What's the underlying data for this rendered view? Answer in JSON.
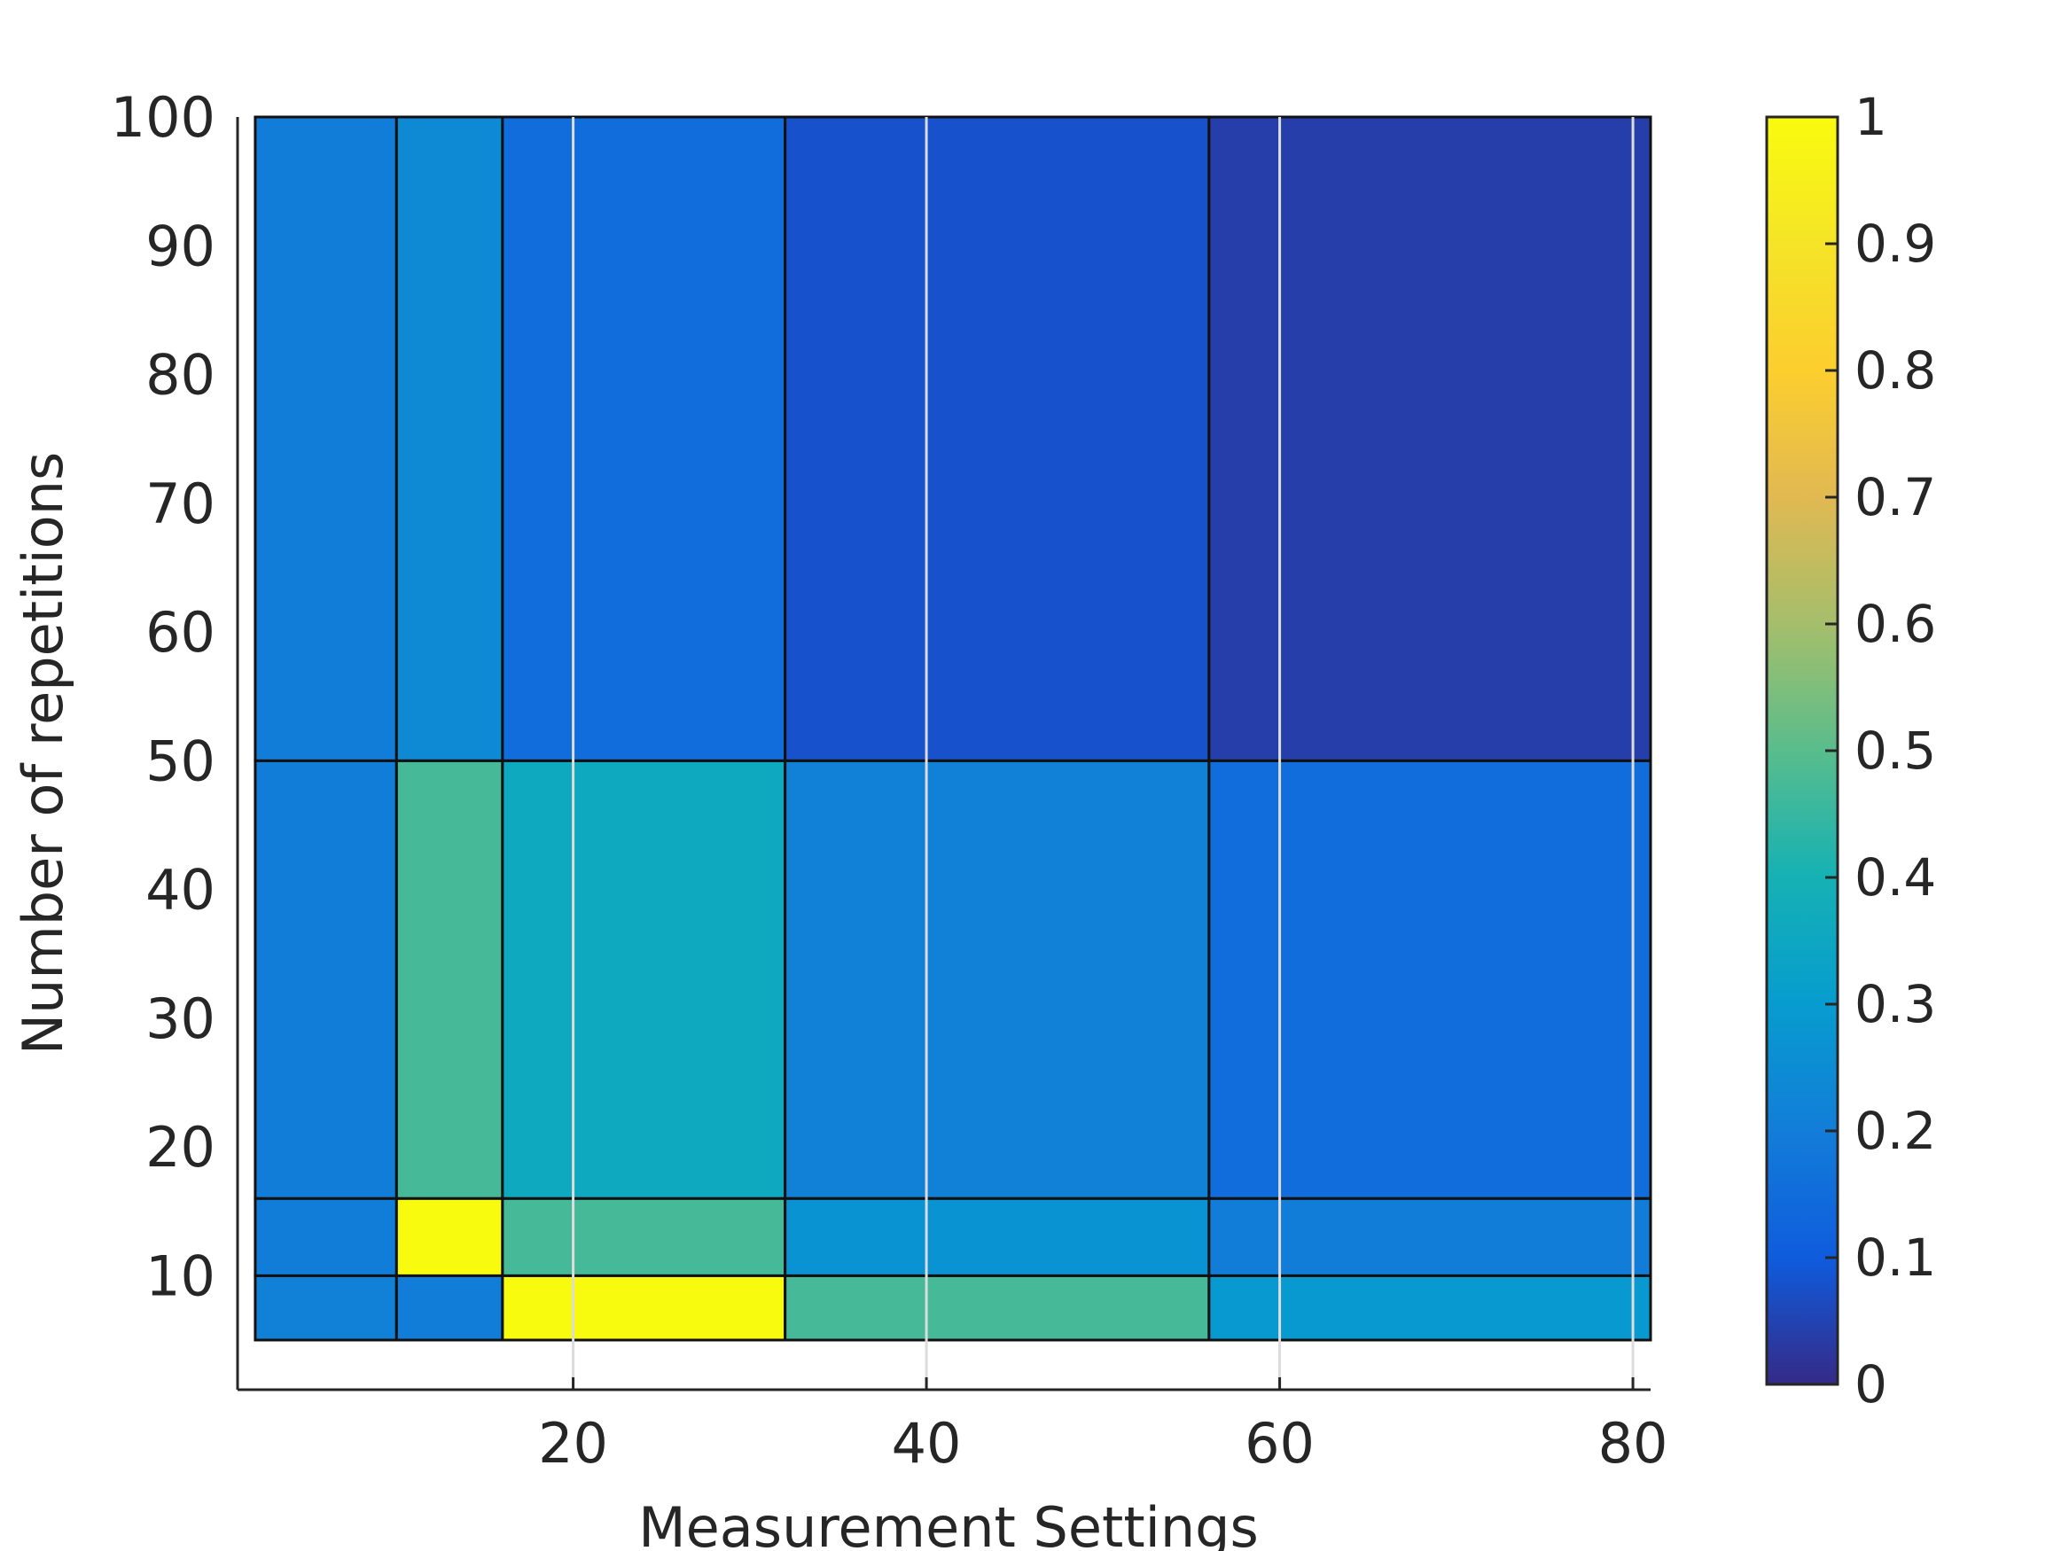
{
  "chart_data": {
    "type": "heatmap",
    "title": "",
    "xlabel": "Measurement Settings",
    "ylabel": "Number of repetitions",
    "xlim": [
      1,
      81
    ],
    "ylim": [
      5,
      100
    ],
    "x_visible_from": 2,
    "x_edges": [
      2,
      10,
      16,
      32,
      56,
      81
    ],
    "y_edges": [
      5,
      10,
      16,
      50,
      100
    ],
    "x_ticks": [
      20,
      40,
      60,
      80
    ],
    "y_ticks": [
      10,
      20,
      30,
      40,
      50,
      60,
      70,
      80,
      90,
      100
    ],
    "values": [
      [
        0.21,
        0.2,
        1.0,
        0.47,
        0.29
      ],
      [
        0.2,
        1.0,
        0.47,
        0.27,
        0.2
      ],
      [
        0.2,
        0.47,
        0.36,
        0.21,
        0.15
      ],
      [
        0.2,
        0.24,
        0.15,
        0.08,
        0.04
      ]
    ],
    "colorbar": {
      "min": 0,
      "max": 1,
      "ticks": [
        0,
        0.1,
        0.2,
        0.3,
        0.4,
        0.5,
        0.6,
        0.7,
        0.8,
        0.9,
        1
      ]
    },
    "grid": false,
    "colormap": "parula"
  }
}
